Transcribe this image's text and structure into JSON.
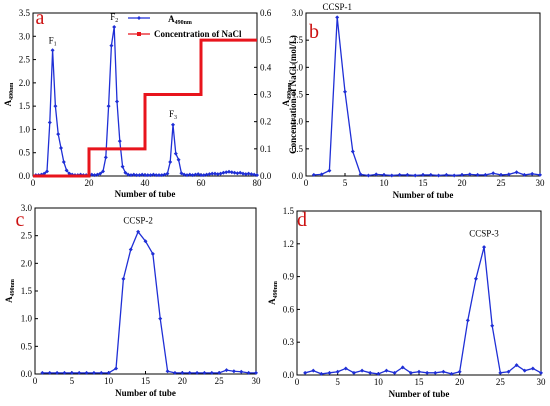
{
  "colors": {
    "series": "#1f2fd6",
    "salt": "#e8141c",
    "panel_letter": "#cc1111",
    "axis": "#000000"
  },
  "chart_data": [
    {
      "panel": "a",
      "type": "line",
      "xlabel": "Number of tube",
      "ylabel": "A490nm",
      "y2label": "Concentration of NaCl (mol/L)",
      "xlim": [
        0,
        80
      ],
      "ylim": [
        0,
        3.5
      ],
      "y2lim": [
        0,
        0.6
      ],
      "xticks": [
        0,
        20,
        40,
        60,
        80
      ],
      "yticks": [
        0.0,
        0.5,
        1.0,
        1.5,
        2.0,
        2.5,
        3.0,
        3.5
      ],
      "y2ticks": [
        0.0,
        0.1,
        0.2,
        0.3,
        0.4,
        0.5,
        0.6
      ],
      "xtick_labels": [
        "0",
        "20",
        "40",
        "60",
        "80"
      ],
      "ytick_labels": [
        "0.0",
        "0.5",
        "1.0",
        "1.5",
        "2.0",
        "2.5",
        "3.0",
        "3.5"
      ],
      "y2tick_labels": [
        "0.0",
        "0.1",
        "0.2",
        "0.3",
        "0.4",
        "0.5",
        "0.6"
      ],
      "legend": {
        "position": "top-right",
        "entries": [
          "A490nm",
          "Concentration of NaCl"
        ]
      },
      "series": [
        {
          "name": "A490nm",
          "axis": "left",
          "marker": "diamond",
          "x": [
            1,
            2,
            3,
            4,
            5,
            6,
            7,
            8,
            9,
            10,
            11,
            12,
            13,
            14,
            15,
            16,
            17,
            18,
            19,
            20,
            21,
            22,
            23,
            24,
            25,
            26,
            27,
            28,
            29,
            30,
            31,
            32,
            33,
            34,
            35,
            36,
            37,
            38,
            39,
            40,
            41,
            42,
            43,
            44,
            45,
            46,
            47,
            48,
            49,
            50,
            51,
            52,
            53,
            54,
            55,
            56,
            57,
            58,
            59,
            60,
            61,
            62,
            63,
            64,
            65,
            66,
            67,
            68,
            69,
            70,
            71,
            72,
            73,
            74,
            75,
            76,
            77,
            78,
            79,
            80
          ],
          "y": [
            0.02,
            0.02,
            0.03,
            0.05,
            0.1,
            1.15,
            2.7,
            1.5,
            0.9,
            0.6,
            0.3,
            0.12,
            0.05,
            0.03,
            0.02,
            0.02,
            0.03,
            0.02,
            0.02,
            0.02,
            0.03,
            0.02,
            0.03,
            0.05,
            0.1,
            0.4,
            1.5,
            2.8,
            3.2,
            1.6,
            0.75,
            0.2,
            0.07,
            0.03,
            0.02,
            0.03,
            0.02,
            0.02,
            0.03,
            0.02,
            0.02,
            0.02,
            0.03,
            0.02,
            0.02,
            0.02,
            0.03,
            0.05,
            0.3,
            1.1,
            0.48,
            0.35,
            0.06,
            0.03,
            0.02,
            0.03,
            0.02,
            0.03,
            0.04,
            0.02,
            0.02,
            0.03,
            0.04,
            0.05,
            0.05,
            0.04,
            0.05,
            0.07,
            0.08,
            0.09,
            0.08,
            0.07,
            0.06,
            0.07,
            0.05,
            0.04,
            0.05,
            0.04,
            0.03,
            0.02
          ]
        },
        {
          "name": "Concentration of NaCl",
          "axis": "right",
          "marker": "square",
          "x": [
            0,
            20,
            20,
            40,
            40,
            60,
            60,
            80
          ],
          "y": [
            0,
            0,
            0.1,
            0.1,
            0.3,
            0.3,
            0.5,
            0.5
          ]
        }
      ],
      "peak_labels": [
        {
          "text": "F1",
          "x": 7,
          "y": 2.78
        },
        {
          "text": "F2",
          "x": 29,
          "y": 3.28
        },
        {
          "text": "F3",
          "x": 50,
          "y": 1.2
        }
      ]
    },
    {
      "panel": "b",
      "type": "line",
      "xlabel": "Number of tube",
      "ylabel": "A490nm",
      "xlim": [
        0,
        30
      ],
      "ylim": [
        0,
        3.0
      ],
      "xticks": [
        0,
        5,
        10,
        15,
        20,
        25,
        30
      ],
      "yticks": [
        0.0,
        0.5,
        1.0,
        1.5,
        2.0,
        2.5,
        3.0
      ],
      "xtick_labels": [
        "0",
        "5",
        "10",
        "15",
        "20",
        "25",
        "30"
      ],
      "ytick_labels": [
        "0.0",
        "0.5",
        "1.0",
        "1.5",
        "2.0",
        "2.5",
        "3.0"
      ],
      "series": [
        {
          "name": "CCSP-1",
          "marker": "diamond",
          "x": [
            1,
            2,
            3,
            4,
            5,
            6,
            7,
            8,
            9,
            10,
            11,
            12,
            13,
            14,
            15,
            16,
            17,
            18,
            19,
            20,
            21,
            22,
            23,
            24,
            25,
            26,
            27,
            28,
            29,
            30
          ],
          "y": [
            0.02,
            0.03,
            0.1,
            2.92,
            1.55,
            0.45,
            0.03,
            0.01,
            0.03,
            0.02,
            0.01,
            0.02,
            0.02,
            0.01,
            0.02,
            0.02,
            0.01,
            0.02,
            0.01,
            0.02,
            0.03,
            0.02,
            0.02,
            0.05,
            0.02,
            0.03,
            0.07,
            0.02,
            0.04,
            0.02
          ]
        }
      ],
      "peak_labels": [
        {
          "text": "CCSP-1",
          "x": 4,
          "y": 3.0
        }
      ]
    },
    {
      "panel": "c",
      "type": "line",
      "xlabel": "Number of tube",
      "ylabel": "A490nm",
      "xlim": [
        0,
        30
      ],
      "ylim": [
        0,
        3.0
      ],
      "xticks": [
        0,
        5,
        10,
        15,
        20,
        25,
        30
      ],
      "yticks": [
        0.0,
        0.5,
        1.0,
        1.5,
        2.0,
        2.5,
        3.0
      ],
      "xtick_labels": [
        "0",
        "5",
        "10",
        "15",
        "20",
        "25",
        "30"
      ],
      "ytick_labels": [
        "0.0",
        "0.5",
        "1.0",
        "1.5",
        "2.0",
        "2.5",
        "3.0"
      ],
      "series": [
        {
          "name": "CCSP-2",
          "marker": "diamond",
          "x": [
            1,
            2,
            3,
            4,
            5,
            6,
            7,
            8,
            9,
            10,
            11,
            12,
            13,
            14,
            15,
            16,
            17,
            18,
            19,
            20,
            21,
            22,
            23,
            24,
            25,
            26,
            27,
            28,
            29,
            30
          ],
          "y": [
            0.02,
            0.02,
            0.02,
            0.02,
            0.02,
            0.02,
            0.02,
            0.02,
            0.02,
            0.02,
            0.1,
            1.72,
            2.25,
            2.57,
            2.4,
            2.17,
            1.0,
            0.05,
            0.02,
            0.02,
            0.02,
            0.02,
            0.02,
            0.02,
            0.02,
            0.07,
            0.05,
            0.04,
            0.02,
            0.02
          ]
        }
      ],
      "peak_labels": [
        {
          "text": "CCSP-2",
          "x": 14,
          "y": 2.67
        }
      ]
    },
    {
      "panel": "d",
      "type": "line",
      "xlabel": "Number of tube",
      "ylabel": "A490nm",
      "xlim": [
        0,
        30
      ],
      "ylim": [
        0,
        1.5
      ],
      "xticks": [
        0,
        5,
        10,
        15,
        20,
        25,
        30
      ],
      "yticks": [
        0.0,
        0.3,
        0.6,
        0.9,
        1.2,
        1.5
      ],
      "xtick_labels": [
        "0",
        "5",
        "10",
        "15",
        "20",
        "25",
        "30"
      ],
      "ytick_labels": [
        "0.0",
        "0.3",
        "0.6",
        "0.9",
        "1.2",
        "1.5"
      ],
      "series": [
        {
          "name": "CCSP-3",
          "marker": "diamond",
          "x": [
            1,
            2,
            3,
            4,
            5,
            6,
            7,
            8,
            9,
            10,
            11,
            12,
            13,
            14,
            15,
            16,
            17,
            18,
            19,
            20,
            21,
            22,
            23,
            24,
            25,
            26,
            27,
            28,
            29,
            30
          ],
          "y": [
            0.02,
            0.04,
            0.01,
            0.02,
            0.03,
            0.06,
            0.02,
            0.04,
            0.02,
            0.01,
            0.04,
            0.02,
            0.07,
            0.02,
            0.03,
            0.02,
            0.02,
            0.03,
            0.01,
            0.03,
            0.5,
            0.88,
            1.17,
            0.45,
            0.02,
            0.03,
            0.09,
            0.04,
            0.06,
            0.02
          ]
        }
      ],
      "peak_labels": [
        {
          "text": "CCSP-3",
          "x": 23,
          "y": 1.24
        }
      ]
    }
  ]
}
